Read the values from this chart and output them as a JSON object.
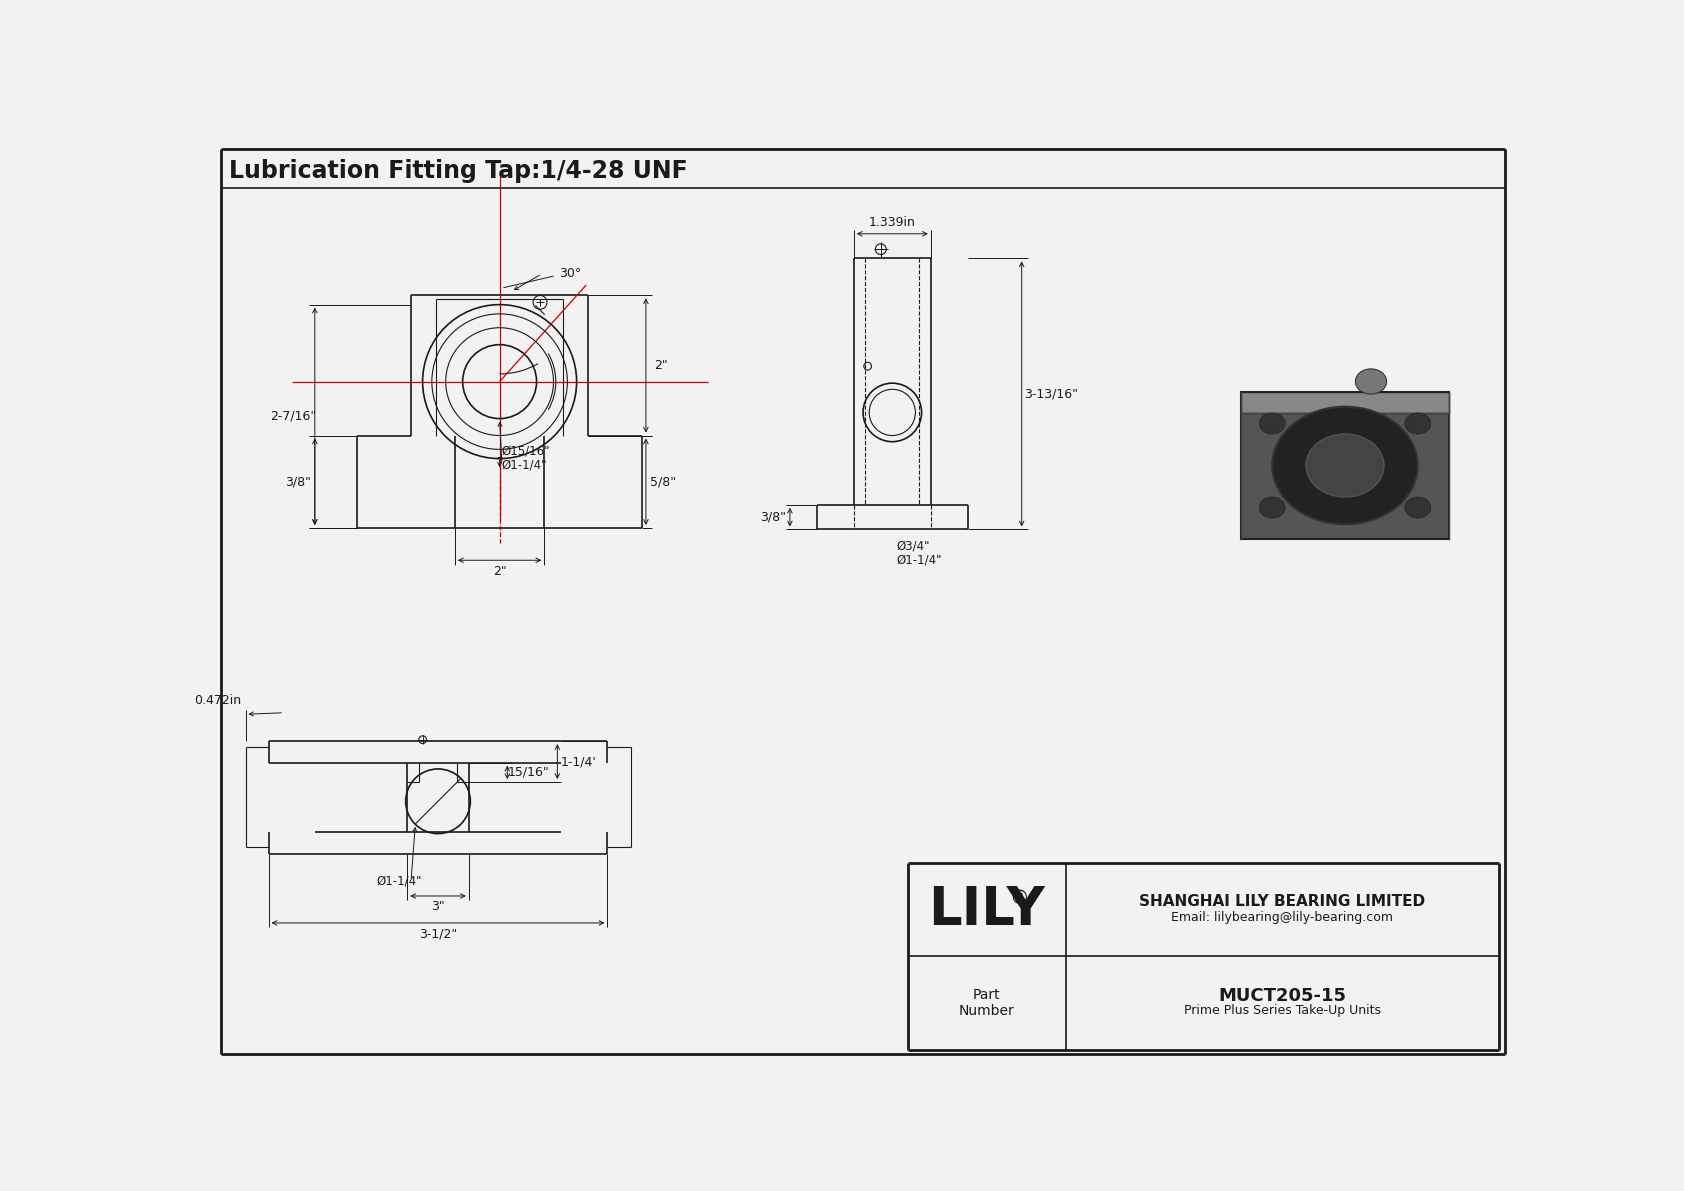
{
  "title": "Lubrication Fitting Tap:1/4-28 UNF",
  "bg_color": "#f2f2f2",
  "line_color": "#1a1a1a",
  "red_line_color": "#cc0000",
  "company_name": "SHANGHAI LILY BEARING LIMITED",
  "company_email": "Email: lilybearing@lily-bearing.com",
  "part_label": "Part\nNumber",
  "part_number": "MUCT205-15",
  "part_series": "Prime Plus Series Take-Up Units",
  "lily_logo": "LILY",
  "annotations_front": {
    "angle_30": "30°",
    "dim_2in": "2\"",
    "dim_5_8in": "5/8\"",
    "dim_2_7_16in": "2-7/16\"",
    "dim_3_8in_left": "3/8\"",
    "dim_15_16in": "Ø15/16\"",
    "dim_1_1_4in": "Ø1-1/4\"",
    "dim_2in_bottom": "2\""
  },
  "annotations_side": {
    "dim_1_339in": "1.339in",
    "dim_3_13_16in": "3-13/16\"",
    "dim_3_8in": "3/8\"",
    "dim_3_4in": "Ø3/4\"",
    "dim_1_1_4in": "Ø1-1/4\""
  },
  "annotations_bottom": {
    "dim_0_472in": "0.472in",
    "dim_15_16in": "15/16\"",
    "dim_1_1_4p": "1-1/4'",
    "dim_phi_1_1_4in": "Ø1-1/4\"",
    "dim_3in": "3\"",
    "dim_3_1_2in": "3-1/2\""
  }
}
